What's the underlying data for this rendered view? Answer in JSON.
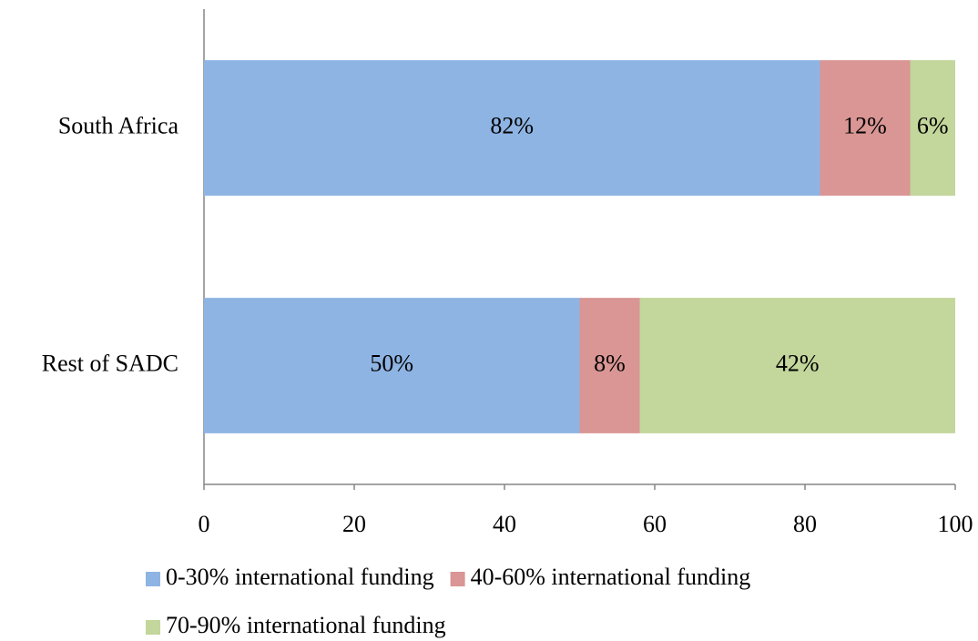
{
  "chart_data": {
    "type": "stacked-barh",
    "categories": [
      "South Africa",
      "Rest of SADC"
    ],
    "series": [
      {
        "name": "0-30% international funding",
        "color": "#8eb4e3",
        "values": [
          82,
          50
        ],
        "value_labels": [
          "82%",
          "50%"
        ]
      },
      {
        "name": "40-60% international funding",
        "color": "#d99694",
        "values": [
          12,
          8
        ],
        "value_labels": [
          "12%",
          "8%"
        ]
      },
      {
        "name": "70-90% international funding",
        "color": "#c3d69b",
        "values": [
          6,
          42
        ],
        "value_labels": [
          "6%",
          "42%"
        ]
      }
    ],
    "xlim": [
      0,
      100
    ],
    "xticks": [
      0,
      20,
      40,
      60,
      80,
      100
    ],
    "grid": false,
    "legend": "bottom"
  }
}
